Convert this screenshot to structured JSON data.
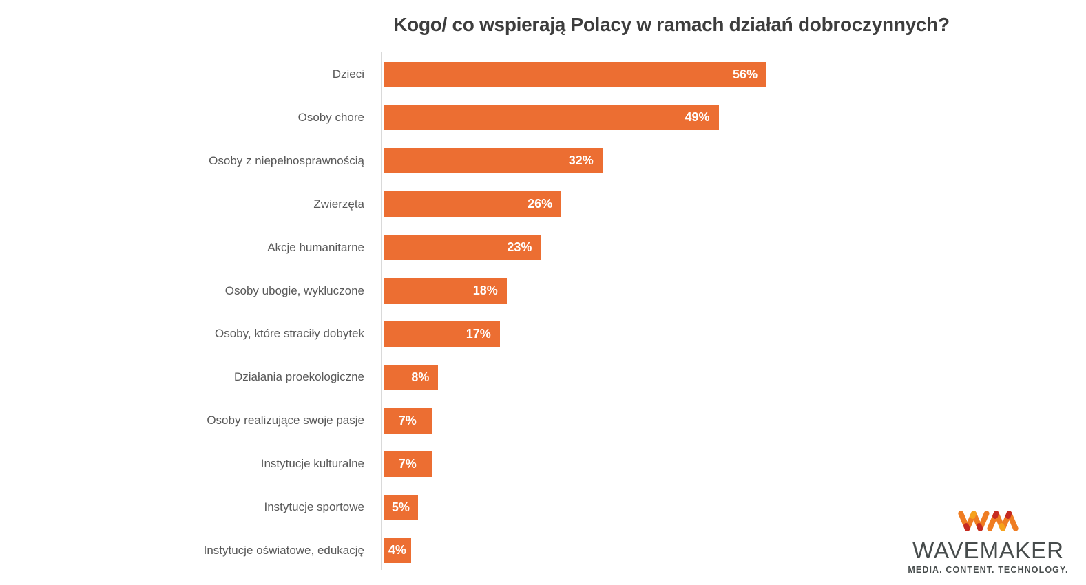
{
  "chart_data": {
    "type": "bar",
    "orientation": "horizontal",
    "title": "Kogo/ co wspierają Polacy w ramach działań dobroczynnych?",
    "categories": [
      "Dzieci",
      "Osoby chore",
      "Osoby z niepełnosprawnością",
      "Zwierzęta",
      "Akcje humanitarne",
      "Osoby ubogie, wykluczone",
      "Osoby, które straciły dobytek",
      "Działania proekologiczne",
      "Osoby realizujące swoje pasje",
      "Instytucje kulturalne",
      "Instytucje sportowe",
      "Instytucje oświatowe, edukację"
    ],
    "values": [
      56,
      49,
      32,
      26,
      23,
      18,
      17,
      8,
      7,
      7,
      5,
      4
    ],
    "unit": "%",
    "xlabel": "",
    "ylabel": "",
    "xlim": [
      0,
      100
    ],
    "grid": false,
    "legend": false,
    "data_labels": "inside-end"
  },
  "brand": {
    "mark": "WM",
    "name": "WAVEMAKER",
    "tagline": "MEDIA. CONTENT. TECHNOLOGY."
  },
  "colors": {
    "bar": "#EC6E32",
    "category_label": "#595959",
    "value_label": "#FFFFFF",
    "title": "#3D3D3D",
    "axis_line": "#D9D9D9",
    "logo_orange": "#EF7D23",
    "logo_red": "#C52A21",
    "logo_amber": "#F6A21B",
    "logo_text": "#474C4C"
  }
}
